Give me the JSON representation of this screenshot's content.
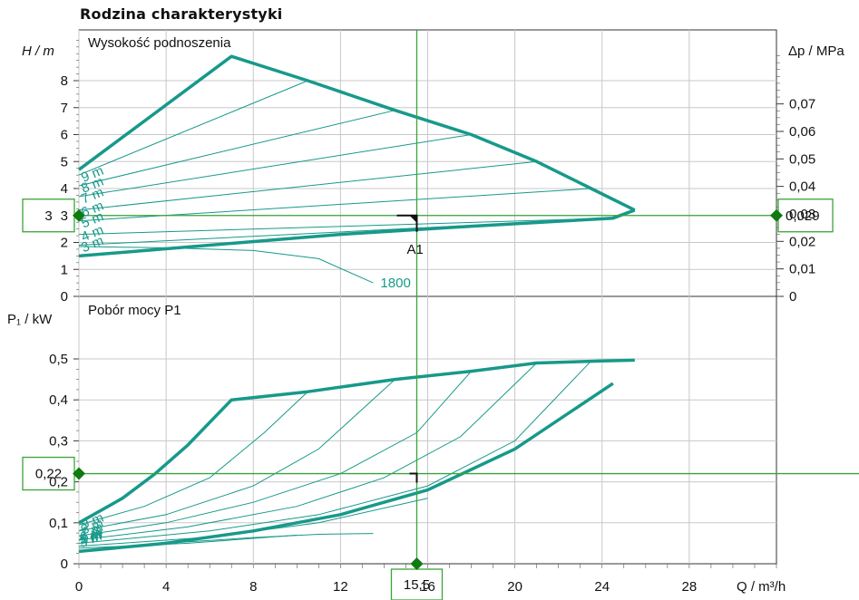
{
  "title": "Rodzina charakterystyki",
  "colors": {
    "curve": "#17998a",
    "grid": "#c8c8c8",
    "operating": "#3aa43a",
    "marker": "#0f7a0f"
  },
  "chart_data": [
    {
      "type": "line",
      "name": "head",
      "panel_title": "Wysokość podnoszenia",
      "ylabel_left": "H / m",
      "ylabel_right": "Δp / MPa",
      "xlabel": "Q / m³/h",
      "xlim": [
        0,
        32
      ],
      "ylim": [
        0,
        10
      ],
      "y_ticks": [
        0,
        1,
        2,
        3,
        4,
        5,
        6,
        7,
        8
      ],
      "right_ticks_mpa": [
        "0",
        "0,01",
        "0,02",
        "0,03",
        "0,04",
        "0,05",
        "0,06",
        "0,07"
      ],
      "envelope_top": [
        [
          0,
          4.7
        ],
        [
          7,
          8.9
        ],
        [
          10.5,
          8.0
        ],
        [
          14.5,
          6.9
        ],
        [
          18,
          6.0
        ],
        [
          21,
          5.0
        ],
        [
          23.5,
          4.0
        ],
        [
          25.5,
          3.2
        ]
      ],
      "envelope_bottom": [
        [
          0,
          1.5
        ],
        [
          6,
          1.9
        ],
        [
          12,
          2.3
        ],
        [
          18,
          2.6
        ],
        [
          24.5,
          2.9
        ],
        [
          25.5,
          3.2
        ]
      ],
      "series": [
        {
          "name": "9 m",
          "points": [
            [
              0,
              4.5
            ],
            [
              10.5,
              8.0
            ]
          ]
        },
        {
          "name": "8 m",
          "points": [
            [
              0,
              4.1
            ],
            [
              14.5,
              6.9
            ]
          ]
        },
        {
          "name": "7 m",
          "points": [
            [
              0,
              3.7
            ],
            [
              18,
              6.0
            ]
          ]
        },
        {
          "name": "6 m",
          "points": [
            [
              0,
              3.2
            ],
            [
              21,
              5.0
            ]
          ]
        },
        {
          "name": "5 m",
          "points": [
            [
              0,
              2.8
            ],
            [
              23.5,
              4.0
            ]
          ]
        },
        {
          "name": "4 m",
          "points": [
            [
              0,
              2.3
            ],
            [
              24.5,
              2.9
            ]
          ]
        },
        {
          "name": "3 m",
          "points": [
            [
              0,
              1.9
            ],
            [
              24.5,
              2.9
            ]
          ]
        }
      ],
      "speed_curve": {
        "name": "1800",
        "points": [
          [
            0,
            1.85
          ],
          [
            4,
            1.8
          ],
          [
            8,
            1.7
          ],
          [
            11,
            1.4
          ],
          [
            13.5,
            0.5
          ]
        ]
      },
      "operating_point": {
        "label": "A1",
        "q": 15.5,
        "h": 3
      },
      "readout_left": "3",
      "readout_right": "0,029"
    },
    {
      "type": "line",
      "name": "power",
      "panel_title": "Pobór mocy P1",
      "ylabel_left": "P₁ / kW",
      "xlabel": "Q / m³/h",
      "xlim": [
        0,
        32
      ],
      "ylim": [
        0,
        0.55
      ],
      "y_ticks": [
        "0",
        "0,1",
        "0,2",
        "0,3",
        "0,4",
        "0,5"
      ],
      "y_tick_values": [
        0,
        0.1,
        0.2,
        0.3,
        0.4,
        0.5
      ],
      "x_ticks": [
        0,
        4,
        8,
        12,
        16,
        20,
        24,
        28
      ],
      "x_tick_labels": [
        "0",
        "4",
        "8",
        "12",
        "16",
        "20",
        "24",
        "28"
      ],
      "envelope_top": [
        [
          0,
          0.1
        ],
        [
          2,
          0.16
        ],
        [
          3.5,
          0.22
        ],
        [
          5,
          0.29
        ],
        [
          7,
          0.4
        ],
        [
          10.5,
          0.42
        ],
        [
          14.5,
          0.45
        ],
        [
          18,
          0.47
        ],
        [
          21,
          0.49
        ],
        [
          24,
          0.495
        ],
        [
          25.5,
          0.497
        ]
      ],
      "envelope_bottom": [
        [
          0,
          0.03
        ],
        [
          4,
          0.05
        ],
        [
          8,
          0.08
        ],
        [
          12,
          0.12
        ],
        [
          16,
          0.18
        ],
        [
          20,
          0.28
        ],
        [
          24.5,
          0.44
        ]
      ],
      "series": [
        {
          "name": "9 m",
          "points": [
            [
              0,
              0.095
            ],
            [
              3,
              0.14
            ],
            [
              6,
              0.21
            ],
            [
              8.5,
              0.32
            ],
            [
              10.5,
              0.42
            ]
          ]
        },
        {
          "name": "8 m",
          "points": [
            [
              0,
              0.08
            ],
            [
              4,
              0.12
            ],
            [
              8,
              0.19
            ],
            [
              11,
              0.28
            ],
            [
              14.5,
              0.45
            ]
          ]
        },
        {
          "name": "7 m",
          "points": [
            [
              0,
              0.068
            ],
            [
              4,
              0.1
            ],
            [
              8,
              0.15
            ],
            [
              12,
              0.22
            ],
            [
              15.5,
              0.32
            ],
            [
              18,
              0.47
            ]
          ]
        },
        {
          "name": "6 m",
          "points": [
            [
              0,
              0.058
            ],
            [
              5,
              0.09
            ],
            [
              10,
              0.14
            ],
            [
              14,
              0.21
            ],
            [
              17.5,
              0.31
            ],
            [
              21,
              0.49
            ]
          ]
        },
        {
          "name": "5 m",
          "points": [
            [
              0,
              0.05
            ],
            [
              6,
              0.08
            ],
            [
              11,
              0.12
            ],
            [
              16,
              0.19
            ],
            [
              20,
              0.3
            ],
            [
              23.5,
              0.495
            ]
          ]
        },
        {
          "name": "4 m",
          "points": [
            [
              0,
              0.043
            ],
            [
              6,
              0.065
            ],
            [
              11,
              0.1
            ],
            [
              16,
              0.16
            ]
          ]
        },
        {
          "name": "3 m",
          "points": [
            [
              0,
              0.038
            ],
            [
              5,
              0.05
            ],
            [
              10,
              0.07
            ]
          ]
        }
      ],
      "speed_curve": {
        "name": "1800",
        "points": [
          [
            0,
            0.032
          ],
          [
            4,
            0.05
          ],
          [
            8,
            0.064
          ],
          [
            11,
            0.072
          ],
          [
            13.5,
            0.074
          ]
        ]
      },
      "operating_point": {
        "q": 15.5,
        "p": 0.22
      },
      "readout_left": "0,22",
      "readout_bottom": "15,5"
    }
  ]
}
